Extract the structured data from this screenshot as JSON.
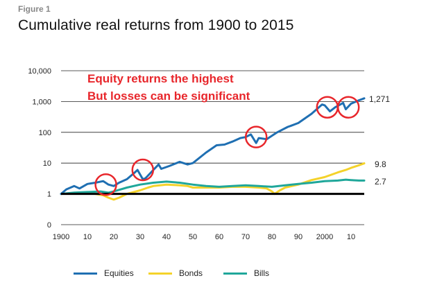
{
  "figure_label": "Figure 1",
  "title": "Cumulative real returns from 1900 to 2015",
  "annotations": [
    "Equity returns the highest",
    "But losses can be significant"
  ],
  "legend": [
    {
      "label": "Equities",
      "color": "#1f6fb2"
    },
    {
      "label": "Bonds",
      "color": "#f4d22a"
    },
    {
      "label": "Bills",
      "color": "#1fa79a"
    }
  ],
  "colors": {
    "equities": "#1f6fb2",
    "bonds": "#f4d22a",
    "bills": "#1fa79a",
    "highlight": "#e8262b",
    "baseline": "#000000"
  },
  "end_labels": {
    "equities": "1,271",
    "bonds": "9.8",
    "bills": "2.7"
  },
  "chart_data": {
    "type": "line",
    "title": "Cumulative real returns from 1900 to 2015",
    "xlabel": "",
    "ylabel": "",
    "xlim": [
      1900,
      2015
    ],
    "ylim": [
      0.1,
      10000
    ],
    "y_scale": "log",
    "y_ticks": [
      {
        "value": 0.1,
        "label": "0"
      },
      {
        "value": 1,
        "label": "1"
      },
      {
        "value": 10,
        "label": "10"
      },
      {
        "value": 100,
        "label": "100"
      },
      {
        "value": 1000,
        "label": "1,000"
      },
      {
        "value": 10000,
        "label": "10,000"
      }
    ],
    "x_ticks": [
      {
        "value": 1900,
        "label": "1900"
      },
      {
        "value": 1910,
        "label": "10"
      },
      {
        "value": 1920,
        "label": "20"
      },
      {
        "value": 1930,
        "label": "30"
      },
      {
        "value": 1940,
        "label": "40"
      },
      {
        "value": 1950,
        "label": "50"
      },
      {
        "value": 1960,
        "label": "60"
      },
      {
        "value": 1970,
        "label": "70"
      },
      {
        "value": 1980,
        "label": "80"
      },
      {
        "value": 1990,
        "label": "90"
      },
      {
        "value": 2000,
        "label": "2000"
      },
      {
        "value": 2010,
        "label": "10"
      }
    ],
    "grid": "horizontal",
    "legend_position": "bottom",
    "series": [
      {
        "name": "Equities",
        "x": [
          1900,
          1902,
          1905,
          1907,
          1910,
          1913,
          1916,
          1918,
          1920,
          1922,
          1925,
          1928,
          1929,
          1931,
          1932,
          1935,
          1937,
          1938,
          1941,
          1945,
          1948,
          1950,
          1955,
          1959,
          1962,
          1965,
          1968,
          1970,
          1972,
          1974,
          1975,
          1978,
          1982,
          1986,
          1987,
          1990,
          1995,
          1999,
          2000,
          2002,
          2004,
          2007,
          2008,
          2010,
          2013,
          2015
        ],
        "y": [
          1,
          1.4,
          1.8,
          1.5,
          2.1,
          2.3,
          2.6,
          2,
          1.8,
          2.3,
          3,
          5,
          6,
          3,
          3.2,
          6,
          9,
          6.5,
          8,
          11,
          9,
          10,
          22,
          38,
          40,
          50,
          65,
          70,
          85,
          45,
          65,
          60,
          100,
          150,
          160,
          200,
          400,
          800,
          750,
          480,
          650,
          900,
          560,
          850,
          1100,
          1271
        ]
      },
      {
        "name": "Bonds",
        "x": [
          1900,
          1905,
          1910,
          1913,
          1916,
          1918,
          1920,
          1922,
          1925,
          1930,
          1933,
          1935,
          1940,
          1945,
          1948,
          1950,
          1955,
          1960,
          1965,
          1970,
          1975,
          1978,
          1980,
          1981,
          1983,
          1985,
          1990,
          1995,
          2000,
          2005,
          2008,
          2010,
          2013,
          2015
        ],
        "y": [
          1,
          1.05,
          1.1,
          1,
          0.9,
          0.75,
          0.65,
          0.75,
          1,
          1.3,
          1.6,
          1.8,
          2,
          1.9,
          1.8,
          1.6,
          1.6,
          1.6,
          1.7,
          1.7,
          1.6,
          1.5,
          1.2,
          1,
          1.3,
          1.6,
          2,
          2.8,
          3.5,
          5,
          6,
          7,
          8.5,
          9.8
        ]
      },
      {
        "name": "Bills",
        "x": [
          1900,
          1905,
          1910,
          1915,
          1918,
          1920,
          1925,
          1930,
          1935,
          1940,
          1945,
          1950,
          1955,
          1960,
          1965,
          1970,
          1975,
          1980,
          1985,
          1990,
          1995,
          2000,
          2005,
          2008,
          2010,
          2013,
          2015
        ],
        "y": [
          1,
          1.1,
          1.15,
          1.2,
          1.1,
          1.2,
          1.6,
          2,
          2.3,
          2.5,
          2.3,
          2,
          1.8,
          1.7,
          1.8,
          1.9,
          1.8,
          1.7,
          1.9,
          2.1,
          2.3,
          2.6,
          2.7,
          2.9,
          2.8,
          2.7,
          2.7
        ]
      }
    ],
    "highlight_circles": [
      {
        "year": 1917,
        "value": 2
      },
      {
        "year": 1931,
        "value": 6
      },
      {
        "year": 1974,
        "value": 70
      },
      {
        "year": 2001,
        "value": 650
      },
      {
        "year": 2009,
        "value": 650
      }
    ]
  }
}
